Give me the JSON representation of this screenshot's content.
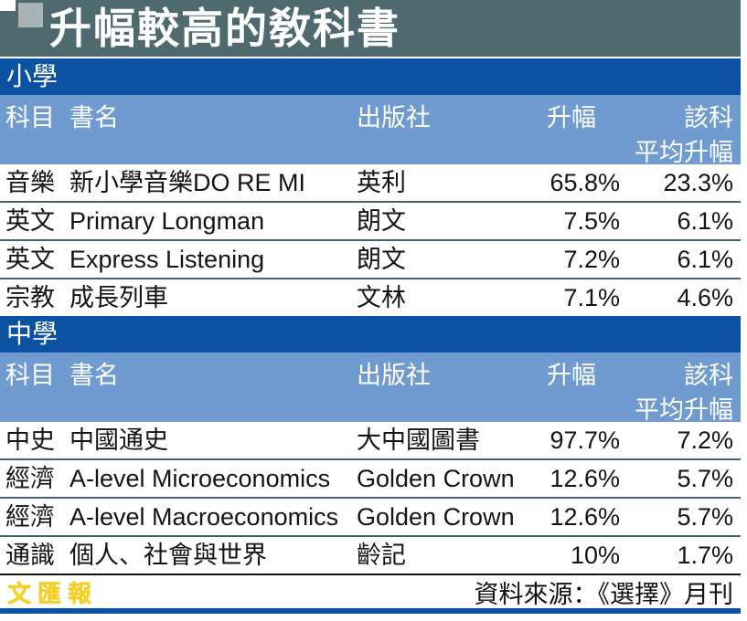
{
  "title": "升幅較高的敎科書",
  "columns": {
    "subject": "科目",
    "book": "書名",
    "publisher": "出版社",
    "increase": "升幅",
    "avg_line1": "該科",
    "avg_line2": "平均升幅"
  },
  "sections": [
    {
      "label": "小學",
      "rows": [
        {
          "subject": "音樂",
          "book": "新小學音樂DO RE MI",
          "publisher": "英利",
          "increase": "65.8%",
          "avg": "23.3%"
        },
        {
          "subject": "英文",
          "book": "Primary Longman",
          "publisher": "朗文",
          "increase": "7.5%",
          "avg": "6.1%"
        },
        {
          "subject": "英文",
          "book": "Express Listening",
          "publisher": "朗文",
          "increase": "7.2%",
          "avg": "6.1%"
        },
        {
          "subject": "宗教",
          "book": "成長列車",
          "publisher": "文林",
          "increase": "7.1%",
          "avg": "4.6%"
        }
      ]
    },
    {
      "label": "中學",
      "rows": [
        {
          "subject": "中史",
          "book": "中國通史",
          "publisher": "大中國圖書",
          "increase": "97.7%",
          "avg": "7.2%"
        },
        {
          "subject": "經濟",
          "book": "A-level Microeconomics",
          "publisher": "Golden Crown",
          "increase": "12.6%",
          "avg": "5.7%"
        },
        {
          "subject": "經濟",
          "book": "A-level Macroeconomics",
          "publisher": "Golden Crown",
          "increase": "12.6%",
          "avg": "5.7%"
        },
        {
          "subject": "通識",
          "book": "個人、社會與世界",
          "publisher": "齡記",
          "increase": "10%",
          "avg": "1.7%"
        }
      ]
    }
  ],
  "footer": {
    "logo": "文匯報",
    "source": "資料來源：《選擇》月刊"
  },
  "colors": {
    "title_band": "#4E6A6E",
    "accent_square": "#A9B3B5",
    "section_bar": "#0B52A3",
    "header_bg": "#6F9BD0",
    "row_separator": "#44626A",
    "footer_rule": "#111111",
    "bottom_line": "#0B52A3",
    "logo_yellow": "#F5D021"
  },
  "chart_data": {
    "type": "table",
    "title": "升幅較高的敎科書",
    "columns": [
      "科目",
      "書名",
      "出版社",
      "升幅",
      "該科平均升幅"
    ],
    "units": "percent",
    "sections": [
      {
        "name": "小學",
        "rows": [
          [
            "音樂",
            "新小學音樂DO RE MI",
            "英利",
            65.8,
            23.3
          ],
          [
            "英文",
            "Primary Longman",
            "朗文",
            7.5,
            6.1
          ],
          [
            "英文",
            "Express Listening",
            "朗文",
            7.2,
            6.1
          ],
          [
            "宗教",
            "成長列車",
            "文林",
            7.1,
            4.6
          ]
        ]
      },
      {
        "name": "中學",
        "rows": [
          [
            "中史",
            "中國通史",
            "大中國圖書",
            97.7,
            7.2
          ],
          [
            "經濟",
            "A-level Microeconomics",
            "Golden Crown",
            12.6,
            5.7
          ],
          [
            "經濟",
            "A-level Macroeconomics",
            "Golden Crown",
            12.6,
            5.7
          ],
          [
            "通識",
            "個人、社會與世界",
            "齡記",
            10,
            1.7
          ]
        ]
      }
    ],
    "source": "資料來源：《選擇》月刊"
  }
}
